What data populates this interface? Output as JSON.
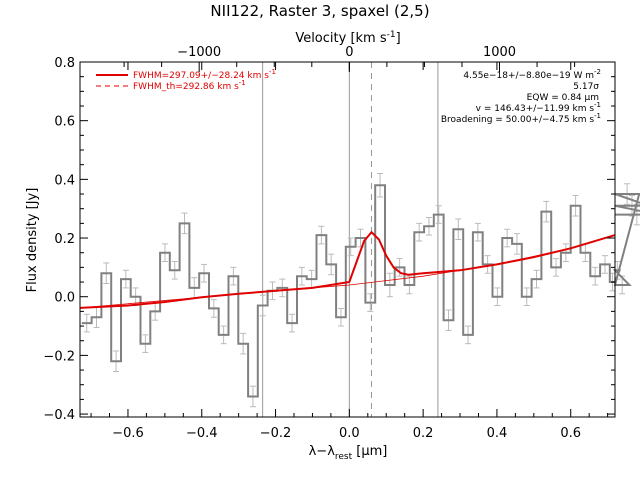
{
  "chart_data": {
    "type": "line",
    "title": "NII122, Raster 3, spaxel (2,5)",
    "xlabel": "λ−λ",
    "xlabel_sub": "rest",
    "xlabel_unit": " [μm]",
    "ylabel": "Flux density [Jy]",
    "top_xlabel": "Velocity [km s",
    "top_xlabel_sup": "-1",
    "top_xlabel_end": "]",
    "xlim": [
      -0.73,
      0.72
    ],
    "ylim": [
      -0.41,
      0.8
    ],
    "x_ticks": [
      -0.6,
      -0.4,
      -0.2,
      0.0,
      0.2,
      0.4,
      0.6
    ],
    "x_tick_labels": [
      "−0.6",
      "−0.4",
      "−0.2",
      "0.0",
      "0.2",
      "0.4",
      "0.6"
    ],
    "y_ticks": [
      -0.4,
      -0.2,
      0.0,
      0.2,
      0.4,
      0.6,
      0.8
    ],
    "y_tick_labels": [
      "−0.4",
      "−0.2",
      "0.0",
      "0.2",
      "0.4",
      "0.6",
      "0.8"
    ],
    "top_ticks_velocity": [
      -1000,
      0,
      1000
    ],
    "top_tick_labels": [
      "−1000",
      "0",
      "1000"
    ],
    "velocity_to_wavelength": 0.000407,
    "vertical_lines": [
      {
        "x": -0.235,
        "style": "solid"
      },
      {
        "x": 0.0,
        "style": "solid"
      },
      {
        "x": 0.06,
        "style": "dashed"
      },
      {
        "x": 0.24,
        "style": "solid"
      }
    ],
    "legend": [
      {
        "label": "FWHM=297.09+/−28.24 km s",
        "sup": "-1",
        "style": "solid"
      },
      {
        "label": "FWHM_th=292.86 km s",
        "sup": "-1",
        "style": "dashed"
      }
    ],
    "annotations": [
      {
        "text": "4.55e−18+/−8.80e−19 W m",
        "sup": "-2"
      },
      {
        "text": "5.17σ",
        "sup": ""
      },
      {
        "text": "EQW = 0.84 μm",
        "sup": ""
      },
      {
        "text": "v = 146.43+/−11.99 km s",
        "sup": "-1"
      },
      {
        "text": "Broadening = 50.00+/−4.75 km s",
        "sup": "-1"
      }
    ],
    "series": [
      {
        "style": "step",
        "color": "#808080",
        "bin_width": 0.0265,
        "x_start": -0.725,
        "values": [
          -0.09,
          -0.07,
          0.08,
          -0.22,
          0.06,
          0.0,
          -0.16,
          -0.05,
          0.15,
          0.09,
          0.25,
          0.03,
          0.08,
          -0.04,
          -0.13,
          0.07,
          -0.16,
          -0.34,
          -0.03,
          0.02,
          0.03,
          -0.09,
          0.07,
          0.06,
          0.21,
          0.11,
          -0.07,
          0.17,
          0.2,
          -0.02,
          0.38,
          0.04,
          0.1,
          0.04,
          0.22,
          0.24,
          0.28,
          -0.08,
          0.23,
          -0.13,
          0.22,
          0.11,
          0.0,
          0.2,
          0.18,
          0.0,
          0.06,
          0.29,
          0.1,
          0.15,
          0.31,
          0.15,
          0.07,
          0.11,
          0.05,
          0.09,
          0.04,
          0.35,
          0.31,
          0.28
        ],
        "errors": [
          0.03,
          0.035,
          0.035,
          0.035,
          0.03,
          0.03,
          0.03,
          0.03,
          0.03,
          0.03,
          0.035,
          0.035,
          0.03,
          0.03,
          0.03,
          0.03,
          0.035,
          0.035,
          0.035,
          0.03,
          0.03,
          0.03,
          0.03,
          0.03,
          0.03,
          0.035,
          0.03,
          0.03,
          0.03,
          0.03,
          0.04,
          0.04,
          0.03,
          0.03,
          0.03,
          0.03,
          0.03,
          0.035,
          0.035,
          0.03,
          0.03,
          0.03,
          0.03,
          0.03,
          0.035,
          0.03,
          0.03,
          0.035,
          0.03,
          0.03,
          0.035,
          0.03,
          0.03,
          0.03,
          0.03,
          0.03,
          0.03,
          0.035,
          0.035,
          0.035
        ]
      },
      {
        "name": "FWHM=297.09+/−28.24 km s",
        "style": "line",
        "color": "#e00000",
        "x": [
          -0.73,
          -0.6,
          -0.5,
          -0.4,
          -0.3,
          -0.2,
          -0.1,
          0.0,
          0.02,
          0.04,
          0.06,
          0.08,
          0.1,
          0.12,
          0.14,
          0.16,
          0.2,
          0.3,
          0.4,
          0.5,
          0.6,
          0.72
        ],
        "y": [
          -0.038,
          -0.03,
          -0.018,
          -0.002,
          0.01,
          0.02,
          0.03,
          0.05,
          0.12,
          0.19,
          0.22,
          0.195,
          0.14,
          0.1,
          0.08,
          0.075,
          0.08,
          0.09,
          0.11,
          0.135,
          0.165,
          0.21
        ]
      },
      {
        "name": "FWHM_th=292.86 km s",
        "style": "dashed",
        "color": "#e00000",
        "x": [
          0.0,
          0.02,
          0.04,
          0.06,
          0.08,
          0.1,
          0.12,
          0.14
        ],
        "y": [
          0.05,
          0.12,
          0.19,
          0.22,
          0.195,
          0.14,
          0.1,
          0.08
        ]
      },
      {
        "name": "continuum",
        "style": "line-thin",
        "color": "#e00000",
        "x": [
          -0.73,
          -0.4,
          -0.2,
          0.0,
          0.2,
          0.4,
          0.6,
          0.72
        ],
        "y": [
          -0.038,
          -0.002,
          0.02,
          0.04,
          0.07,
          0.11,
          0.165,
          0.21
        ]
      }
    ]
  }
}
